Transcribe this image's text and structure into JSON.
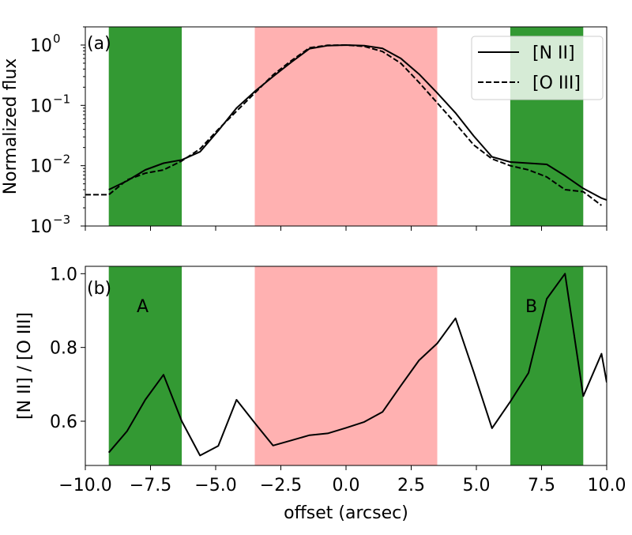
{
  "chart_data": [
    {
      "type": "line",
      "panel_label": "(a)",
      "ylabel": "Normalized flux",
      "yscale": "log",
      "xlim": [
        -10,
        10
      ],
      "ylim": [
        0.001,
        2
      ],
      "y_ticks": [
        {
          "value": 1,
          "base": "10",
          "exp": "0"
        },
        {
          "value": 0.1,
          "base": "10",
          "exp": "−1"
        },
        {
          "value": 0.01,
          "base": "10",
          "exp": "−2"
        },
        {
          "value": 0.001,
          "base": "10",
          "exp": "−3"
        }
      ],
      "legend": {
        "position": "top-right",
        "entries": [
          "[N II]",
          "[O III]"
        ]
      },
      "series": [
        {
          "name": "[N II]",
          "style": "solid",
          "x": [
            -9.1,
            -8.4,
            -7.7,
            -7.0,
            -6.3,
            -5.6,
            -4.9,
            -4.2,
            -3.5,
            -2.8,
            -2.1,
            -1.4,
            -0.7,
            0.0,
            0.7,
            1.4,
            2.1,
            2.8,
            3.5,
            4.2,
            4.9,
            5.6,
            6.3,
            7.0,
            7.7,
            8.4,
            9.1,
            9.8,
            10.0
          ],
          "values": [
            0.004,
            0.0056,
            0.0085,
            0.011,
            0.0125,
            0.017,
            0.038,
            0.09,
            0.17,
            0.3,
            0.52,
            0.87,
            0.98,
            1.0,
            0.98,
            0.88,
            0.6,
            0.33,
            0.16,
            0.075,
            0.031,
            0.014,
            0.0115,
            0.011,
            0.0105,
            0.0068,
            0.0042,
            0.0029,
            0.0027
          ]
        },
        {
          "name": "[O III]",
          "style": "dashed",
          "x": [
            -10.0,
            -9.1,
            -8.4,
            -7.7,
            -7.0,
            -6.3,
            -5.6,
            -4.9,
            -4.2,
            -3.5,
            -2.8,
            -2.1,
            -1.4,
            -0.7,
            0.0,
            0.7,
            1.4,
            2.1,
            2.8,
            3.5,
            4.2,
            4.9,
            5.6,
            6.3,
            7.0,
            7.7,
            8.4,
            9.1,
            9.8
          ],
          "values": [
            0.0033,
            0.0033,
            0.0058,
            0.0075,
            0.0085,
            0.012,
            0.019,
            0.04,
            0.08,
            0.16,
            0.32,
            0.55,
            0.9,
            0.99,
            1.0,
            0.95,
            0.78,
            0.5,
            0.24,
            0.11,
            0.05,
            0.022,
            0.013,
            0.01,
            0.0085,
            0.0065,
            0.004,
            0.0037,
            0.0022
          ]
        }
      ],
      "shaded_regions": [
        {
          "x_range": [
            -9.1,
            -6.3
          ],
          "color": "#339933"
        },
        {
          "x_range": [
            -3.5,
            3.5
          ],
          "color": "#ffb1b1"
        },
        {
          "x_range": [
            6.3,
            9.1
          ],
          "color": "#339933"
        }
      ]
    },
    {
      "type": "line",
      "panel_label": "(b)",
      "xlabel": "offset (arcsec)",
      "ylabel": "[N II] / [O III]",
      "xlim": [
        -10,
        10
      ],
      "ylim": [
        0.48,
        1.02
      ],
      "x_ticks": [
        -10.0,
        -7.5,
        -5.0,
        -2.5,
        0.0,
        2.5,
        5.0,
        7.5,
        10.0
      ],
      "x_tick_labels": [
        "−10.0",
        "−7.5",
        "−5.0",
        "−2.5",
        "0.0",
        "2.5",
        "5.0",
        "7.5",
        "10.0"
      ],
      "y_ticks": [
        0.6,
        0.8,
        1.0
      ],
      "y_tick_labels": [
        "0.6",
        "0.8",
        "1.0"
      ],
      "annotations": [
        {
          "text": "A",
          "x": -7.8,
          "y": 0.9
        },
        {
          "text": "B",
          "x": 7.0,
          "y": 0.9
        }
      ],
      "series": [
        {
          "name": "[N II] / [O III]",
          "style": "solid",
          "x": [
            -9.1,
            -8.4,
            -7.7,
            -7.0,
            -6.3,
            -5.6,
            -4.9,
            -4.2,
            -3.5,
            -2.8,
            -2.1,
            -1.4,
            -0.7,
            0.0,
            0.7,
            1.4,
            2.1,
            2.8,
            3.5,
            4.2,
            4.9,
            5.6,
            6.3,
            7.0,
            7.7,
            8.4,
            9.1,
            9.8,
            10.0
          ],
          "values": [
            0.515,
            0.573,
            0.658,
            0.726,
            0.6,
            0.507,
            0.533,
            0.658,
            0.595,
            0.534,
            0.548,
            0.562,
            0.567,
            0.582,
            0.598,
            0.625,
            0.696,
            0.765,
            0.811,
            0.879,
            0.733,
            0.581,
            0.653,
            0.731,
            0.932,
            1.0,
            0.668,
            0.783,
            0.705
          ]
        }
      ],
      "shaded_regions": [
        {
          "x_range": [
            -9.1,
            -6.3
          ],
          "color": "#339933"
        },
        {
          "x_range": [
            -3.5,
            3.5
          ],
          "color": "#ffb1b1"
        },
        {
          "x_range": [
            6.3,
            9.1
          ],
          "color": "#339933"
        }
      ]
    }
  ]
}
